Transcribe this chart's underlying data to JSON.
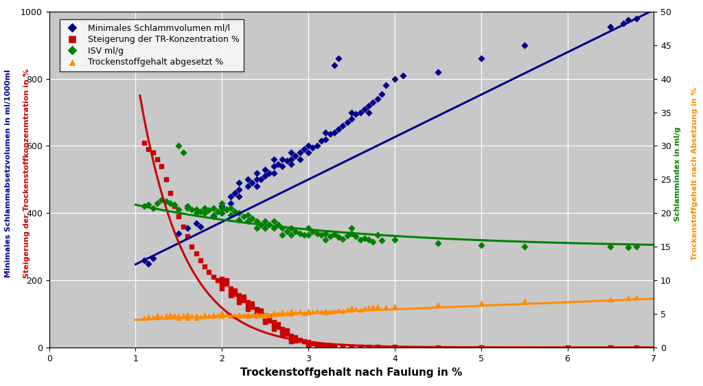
{
  "xlabel": "Trockenstoffgehalt nach Faulung in %",
  "ylabel_left_blue": "Minimales Schlammabsetzvolumen in ml/1000ml",
  "ylabel_left_red": "Steigerung der Trockenstoffkonzenmtration in %",
  "ylabel_right_green": "Schlammindex in ml/g",
  "ylabel_right_orange": "Trockenstoffgehalt nach Absetzung in %",
  "xlim": [
    0,
    7
  ],
  "ylim_left": [
    0,
    1000
  ],
  "ylim_right": [
    0,
    50
  ],
  "bg_color": "#c8c8c8",
  "colors": {
    "blue": "#00008B",
    "red": "#CC0000",
    "green": "#008000",
    "orange": "#FF8C00"
  },
  "blue_scatter": [
    [
      1.1,
      260
    ],
    [
      1.15,
      250
    ],
    [
      1.2,
      265
    ],
    [
      1.5,
      340
    ],
    [
      1.6,
      355
    ],
    [
      1.7,
      370
    ],
    [
      1.75,
      360
    ],
    [
      1.9,
      390
    ],
    [
      2.0,
      400
    ],
    [
      2.0,
      420
    ],
    [
      2.05,
      410
    ],
    [
      2.1,
      430
    ],
    [
      2.1,
      450
    ],
    [
      2.15,
      460
    ],
    [
      2.2,
      450
    ],
    [
      2.2,
      470
    ],
    [
      2.2,
      490
    ],
    [
      2.3,
      480
    ],
    [
      2.3,
      500
    ],
    [
      2.35,
      490
    ],
    [
      2.4,
      480
    ],
    [
      2.4,
      500
    ],
    [
      2.4,
      520
    ],
    [
      2.45,
      500
    ],
    [
      2.5,
      510
    ],
    [
      2.5,
      530
    ],
    [
      2.55,
      520
    ],
    [
      2.6,
      520
    ],
    [
      2.6,
      540
    ],
    [
      2.6,
      560
    ],
    [
      2.65,
      545
    ],
    [
      2.7,
      540
    ],
    [
      2.7,
      560
    ],
    [
      2.75,
      555
    ],
    [
      2.8,
      545
    ],
    [
      2.8,
      560
    ],
    [
      2.8,
      580
    ],
    [
      2.85,
      570
    ],
    [
      2.9,
      560
    ],
    [
      2.9,
      580
    ],
    [
      2.95,
      590
    ],
    [
      3.0,
      580
    ],
    [
      3.0,
      600
    ],
    [
      3.05,
      595
    ],
    [
      3.1,
      600
    ],
    [
      3.15,
      615
    ],
    [
      3.2,
      620
    ],
    [
      3.2,
      640
    ],
    [
      3.25,
      635
    ],
    [
      3.3,
      640
    ],
    [
      3.35,
      650
    ],
    [
      3.3,
      840
    ],
    [
      3.35,
      860
    ],
    [
      3.4,
      660
    ],
    [
      3.45,
      670
    ],
    [
      3.5,
      680
    ],
    [
      3.5,
      700
    ],
    [
      3.55,
      695
    ],
    [
      3.6,
      700
    ],
    [
      3.65,
      710
    ],
    [
      3.7,
      700
    ],
    [
      3.7,
      720
    ],
    [
      3.75,
      730
    ],
    [
      3.8,
      740
    ],
    [
      3.85,
      755
    ],
    [
      3.9,
      780
    ],
    [
      4.0,
      800
    ],
    [
      4.1,
      810
    ],
    [
      4.5,
      820
    ],
    [
      5.0,
      860
    ],
    [
      5.5,
      900
    ],
    [
      6.5,
      955
    ],
    [
      6.65,
      965
    ],
    [
      6.7,
      975
    ],
    [
      6.8,
      980
    ]
  ],
  "red_scatter": [
    [
      1.1,
      610
    ],
    [
      1.15,
      590
    ],
    [
      1.2,
      580
    ],
    [
      1.25,
      560
    ],
    [
      1.3,
      540
    ],
    [
      1.35,
      500
    ],
    [
      1.4,
      460
    ],
    [
      1.45,
      420
    ],
    [
      1.5,
      390
    ],
    [
      1.55,
      360
    ],
    [
      1.6,
      330
    ],
    [
      1.65,
      300
    ],
    [
      1.7,
      280
    ],
    [
      1.75,
      260
    ],
    [
      1.8,
      240
    ],
    [
      1.85,
      225
    ],
    [
      1.9,
      210
    ],
    [
      1.95,
      200
    ],
    [
      2.0,
      195
    ],
    [
      2.0,
      205
    ],
    [
      2.0,
      185
    ],
    [
      2.05,
      190
    ],
    [
      2.05,
      200
    ],
    [
      2.1,
      175
    ],
    [
      2.1,
      165
    ],
    [
      2.15,
      170
    ],
    [
      2.15,
      160
    ],
    [
      2.2,
      155
    ],
    [
      2.2,
      145
    ],
    [
      2.25,
      150
    ],
    [
      2.25,
      140
    ],
    [
      2.3,
      135
    ],
    [
      2.3,
      125
    ],
    [
      2.35,
      130
    ],
    [
      2.35,
      120
    ],
    [
      2.4,
      115
    ],
    [
      2.4,
      105
    ],
    [
      2.45,
      110
    ],
    [
      2.45,
      100
    ],
    [
      2.5,
      95
    ],
    [
      2.5,
      85
    ],
    [
      2.55,
      90
    ],
    [
      2.55,
      80
    ],
    [
      2.6,
      75
    ],
    [
      2.6,
      65
    ],
    [
      2.65,
      70
    ],
    [
      2.65,
      60
    ],
    [
      2.7,
      55
    ],
    [
      2.7,
      45
    ],
    [
      2.75,
      50
    ],
    [
      2.75,
      40
    ],
    [
      2.8,
      35
    ],
    [
      2.8,
      25
    ],
    [
      2.85,
      30
    ],
    [
      2.85,
      20
    ],
    [
      2.9,
      22
    ],
    [
      2.95,
      18
    ],
    [
      3.0,
      15
    ],
    [
      3.0,
      10
    ],
    [
      3.05,
      12
    ],
    [
      3.1,
      8
    ],
    [
      3.15,
      7
    ],
    [
      3.2,
      6
    ],
    [
      3.25,
      5
    ],
    [
      3.3,
      4
    ],
    [
      3.4,
      3
    ],
    [
      3.5,
      2
    ],
    [
      3.6,
      2
    ],
    [
      3.7,
      1
    ],
    [
      3.8,
      1
    ],
    [
      4.0,
      1
    ],
    [
      4.5,
      0
    ],
    [
      5.0,
      0
    ],
    [
      6.0,
      0
    ],
    [
      6.5,
      0
    ],
    [
      6.8,
      0
    ],
    [
      2.0,
      175
    ],
    [
      2.1,
      155
    ],
    [
      2.2,
      135
    ],
    [
      2.3,
      115
    ],
    [
      2.4,
      95
    ],
    [
      2.5,
      75
    ],
    [
      2.6,
      55
    ],
    [
      2.7,
      38
    ],
    [
      2.8,
      18
    ],
    [
      3.0,
      8
    ],
    [
      3.2,
      4
    ],
    [
      3.5,
      1
    ],
    [
      4.0,
      0
    ],
    [
      5.0,
      0
    ],
    [
      6.5,
      0
    ]
  ],
  "green_scatter": [
    [
      1.1,
      420
    ],
    [
      1.15,
      425
    ],
    [
      1.2,
      415
    ],
    [
      1.25,
      430
    ],
    [
      1.3,
      440
    ],
    [
      1.35,
      435
    ],
    [
      1.4,
      430
    ],
    [
      1.45,
      425
    ],
    [
      1.5,
      410
    ],
    [
      1.5,
      600
    ],
    [
      1.55,
      580
    ],
    [
      1.6,
      415
    ],
    [
      1.6,
      420
    ],
    [
      1.65,
      410
    ],
    [
      1.7,
      410
    ],
    [
      1.7,
      400
    ],
    [
      1.75,
      405
    ],
    [
      1.8,
      415
    ],
    [
      1.8,
      400
    ],
    [
      1.85,
      408
    ],
    [
      1.9,
      415
    ],
    [
      1.9,
      395
    ],
    [
      1.95,
      405
    ],
    [
      2.0,
      415
    ],
    [
      2.0,
      400
    ],
    [
      2.0,
      430
    ],
    [
      2.05,
      410
    ],
    [
      2.1,
      415
    ],
    [
      2.1,
      395
    ],
    [
      2.15,
      405
    ],
    [
      2.2,
      400
    ],
    [
      2.2,
      380
    ],
    [
      2.25,
      390
    ],
    [
      2.3,
      395
    ],
    [
      2.3,
      375
    ],
    [
      2.35,
      385
    ],
    [
      2.4,
      375
    ],
    [
      2.4,
      355
    ],
    [
      2.45,
      365
    ],
    [
      2.5,
      375
    ],
    [
      2.5,
      355
    ],
    [
      2.55,
      365
    ],
    [
      2.6,
      375
    ],
    [
      2.6,
      355
    ],
    [
      2.65,
      365
    ],
    [
      2.7,
      355
    ],
    [
      2.7,
      335
    ],
    [
      2.75,
      345
    ],
    [
      2.8,
      355
    ],
    [
      2.8,
      335
    ],
    [
      2.85,
      345
    ],
    [
      2.9,
      340
    ],
    [
      2.95,
      335
    ],
    [
      3.0,
      355
    ],
    [
      3.0,
      335
    ],
    [
      3.05,
      345
    ],
    [
      3.1,
      340
    ],
    [
      3.15,
      335
    ],
    [
      3.2,
      340
    ],
    [
      3.2,
      320
    ],
    [
      3.25,
      330
    ],
    [
      3.3,
      338
    ],
    [
      3.35,
      328
    ],
    [
      3.4,
      322
    ],
    [
      3.45,
      332
    ],
    [
      3.5,
      340
    ],
    [
      3.5,
      355
    ],
    [
      3.55,
      330
    ],
    [
      3.6,
      320
    ],
    [
      3.65,
      325
    ],
    [
      3.7,
      320
    ],
    [
      3.75,
      315
    ],
    [
      3.8,
      335
    ],
    [
      3.85,
      318
    ],
    [
      4.0,
      320
    ],
    [
      4.5,
      310
    ],
    [
      5.0,
      305
    ],
    [
      5.5,
      300
    ],
    [
      6.5,
      300
    ],
    [
      6.7,
      298
    ],
    [
      6.8,
      300
    ]
  ],
  "orange_scatter": [
    [
      1.1,
      88
    ],
    [
      1.15,
      92
    ],
    [
      1.2,
      90
    ],
    [
      1.25,
      95
    ],
    [
      1.3,
      92
    ],
    [
      1.35,
      96
    ],
    [
      1.4,
      98
    ],
    [
      1.45,
      95
    ],
    [
      1.5,
      88
    ],
    [
      1.5,
      93
    ],
    [
      1.55,
      96
    ],
    [
      1.6,
      98
    ],
    [
      1.6,
      88
    ],
    [
      1.65,
      93
    ],
    [
      1.7,
      94
    ],
    [
      1.7,
      88
    ],
    [
      1.75,
      92
    ],
    [
      1.8,
      94
    ],
    [
      1.8,
      98
    ],
    [
      1.85,
      93
    ],
    [
      1.9,
      94
    ],
    [
      1.9,
      98
    ],
    [
      1.95,
      96
    ],
    [
      2.0,
      98
    ],
    [
      2.0,
      93
    ],
    [
      2.0,
      103
    ],
    [
      2.05,
      98
    ],
    [
      2.1,
      98
    ],
    [
      2.1,
      93
    ],
    [
      2.15,
      96
    ],
    [
      2.2,
      98
    ],
    [
      2.2,
      93
    ],
    [
      2.25,
      96
    ],
    [
      2.3,
      98
    ],
    [
      2.3,
      93
    ],
    [
      2.35,
      96
    ],
    [
      2.4,
      98
    ],
    [
      2.4,
      93
    ],
    [
      2.45,
      96
    ],
    [
      2.5,
      98
    ],
    [
      2.5,
      93
    ],
    [
      2.55,
      96
    ],
    [
      2.6,
      98
    ],
    [
      2.6,
      103
    ],
    [
      2.65,
      100
    ],
    [
      2.7,
      100
    ],
    [
      2.7,
      105
    ],
    [
      2.75,
      102
    ],
    [
      2.8,
      100
    ],
    [
      2.8,
      108
    ],
    [
      2.85,
      104
    ],
    [
      2.9,
      105
    ],
    [
      2.95,
      102
    ],
    [
      3.0,
      108
    ],
    [
      3.0,
      103
    ],
    [
      3.05,
      106
    ],
    [
      3.1,
      108
    ],
    [
      3.15,
      106
    ],
    [
      3.2,
      108
    ],
    [
      3.2,
      103
    ],
    [
      3.25,
      106
    ],
    [
      3.3,
      108
    ],
    [
      3.35,
      110
    ],
    [
      3.4,
      108
    ],
    [
      3.45,
      112
    ],
    [
      3.5,
      112
    ],
    [
      3.5,
      118
    ],
    [
      3.55,
      115
    ],
    [
      3.6,
      113
    ],
    [
      3.65,
      116
    ],
    [
      3.7,
      118
    ],
    [
      3.75,
      120
    ],
    [
      3.8,
      123
    ],
    [
      3.9,
      120
    ],
    [
      4.0,
      123
    ],
    [
      4.5,
      128
    ],
    [
      5.0,
      133
    ],
    [
      5.5,
      138
    ],
    [
      6.5,
      143
    ],
    [
      6.7,
      146
    ],
    [
      6.8,
      148
    ]
  ],
  "blue_trend_params": [
    130,
    7.0,
    1000
  ],
  "red_trend_params": [
    1.1,
    680,
    2.2
  ],
  "green_trend_params": [
    1.0,
    420,
    300,
    0.45
  ],
  "orange_trend_params": [
    1.0,
    88,
    7.0,
    150
  ]
}
